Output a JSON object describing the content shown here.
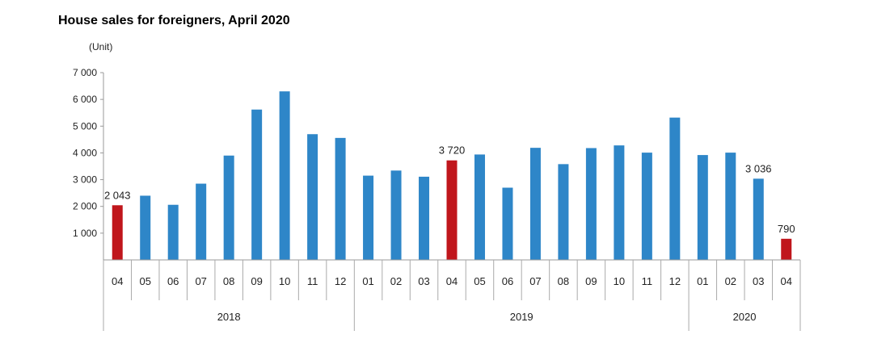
{
  "chart_data": {
    "type": "bar",
    "title": "House sales for foreigners, April 2020",
    "unit_label": "(Unit)",
    "ylim": [
      0,
      7000
    ],
    "y_ticks": [
      "7 000",
      "6 000",
      "5 000",
      "4 000",
      "3 000",
      "2 000",
      "1 000"
    ],
    "y_tick_values": [
      7000,
      6000,
      5000,
      4000,
      3000,
      2000,
      1000
    ],
    "grid": false,
    "categories": [
      "04",
      "05",
      "06",
      "07",
      "08",
      "09",
      "10",
      "11",
      "12",
      "01",
      "02",
      "03",
      "04",
      "05",
      "06",
      "07",
      "08",
      "09",
      "10",
      "11",
      "12",
      "01",
      "02",
      "03",
      "04"
    ],
    "values": [
      2043,
      2400,
      2060,
      2850,
      3900,
      5620,
      6300,
      4700,
      4560,
      3150,
      3340,
      3110,
      3720,
      3940,
      2700,
      4190,
      3580,
      4180,
      4280,
      4010,
      5320,
      3920,
      4010,
      3036,
      790
    ],
    "years": [
      {
        "label": "2018",
        "start": 0,
        "count": 9
      },
      {
        "label": "2019",
        "start": 9,
        "count": 12
      },
      {
        "label": "2020",
        "start": 21,
        "count": 4
      }
    ],
    "highlight_indices": [
      0,
      12,
      24
    ],
    "data_labels": [
      {
        "index": 0,
        "text": "2 043"
      },
      {
        "index": 12,
        "text": "3 720"
      },
      {
        "index": 23,
        "text": "3 036"
      },
      {
        "index": 24,
        "text": "790"
      }
    ],
    "colors": {
      "normal": "#2e86c8",
      "highlight": "#c0161c"
    }
  }
}
